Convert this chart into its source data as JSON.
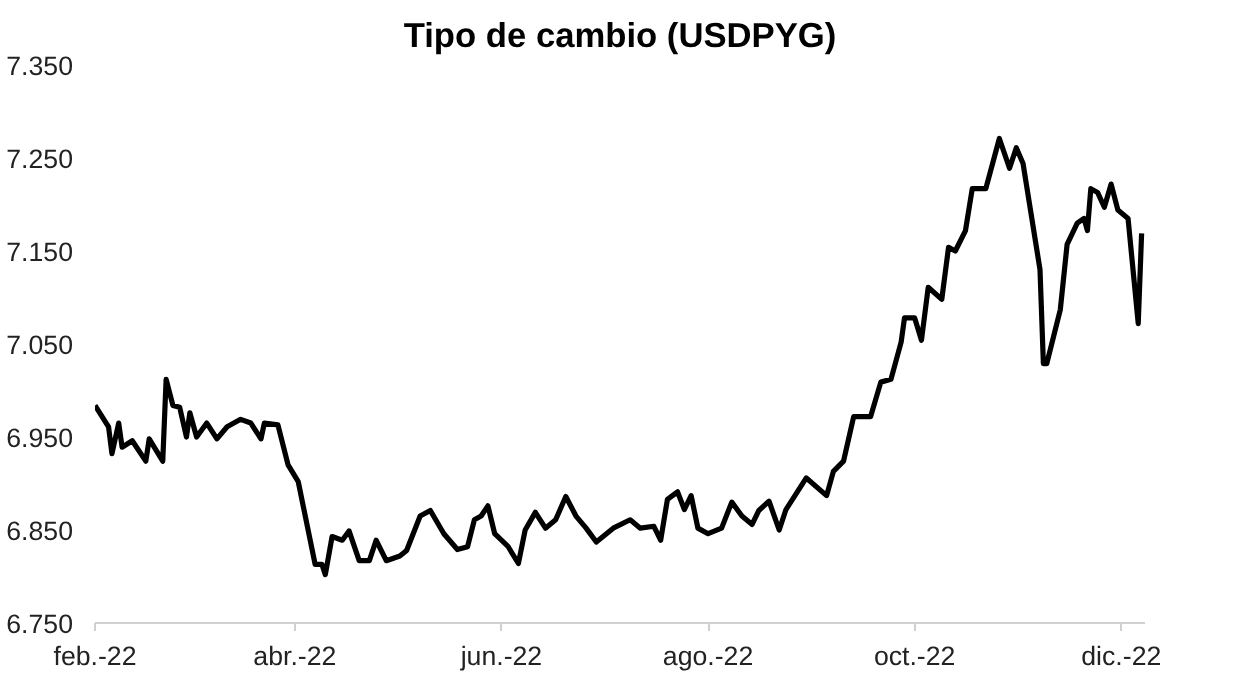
{
  "chart_data": {
    "type": "line",
    "title": "Tipo de cambio (USDPYG)",
    "x": [
      "2022-02-01",
      "2022-02-05",
      "2022-02-06",
      "2022-02-08",
      "2022-02-09",
      "2022-02-12",
      "2022-02-16",
      "2022-02-17",
      "2022-02-21",
      "2022-02-22",
      "2022-02-24",
      "2022-02-26",
      "2022-02-28",
      "2022-03-01",
      "2022-03-03",
      "2022-03-06",
      "2022-03-09",
      "2022-03-12",
      "2022-03-16",
      "2022-03-19",
      "2022-03-22",
      "2022-03-23",
      "2022-03-27",
      "2022-03-30",
      "2022-04-02",
      "2022-04-07",
      "2022-04-09",
      "2022-04-10",
      "2022-04-12",
      "2022-04-15",
      "2022-04-17",
      "2022-04-20",
      "2022-04-23",
      "2022-04-25",
      "2022-04-28",
      "2022-05-02",
      "2022-05-04",
      "2022-05-08",
      "2022-05-11",
      "2022-05-15",
      "2022-05-19",
      "2022-05-22",
      "2022-05-24",
      "2022-05-26",
      "2022-05-28",
      "2022-05-30",
      "2022-06-03",
      "2022-06-06",
      "2022-06-08",
      "2022-06-11",
      "2022-06-14",
      "2022-06-17",
      "2022-06-20",
      "2022-06-23",
      "2022-06-26",
      "2022-06-29",
      "2022-07-04",
      "2022-07-09",
      "2022-07-12",
      "2022-07-16",
      "2022-07-18",
      "2022-07-20",
      "2022-07-23",
      "2022-07-25",
      "2022-07-27",
      "2022-07-29",
      "2022-08-01",
      "2022-08-05",
      "2022-08-08",
      "2022-08-11",
      "2022-08-14",
      "2022-08-16",
      "2022-08-19",
      "2022-08-22",
      "2022-08-24",
      "2022-08-30",
      "2022-09-05",
      "2022-09-07",
      "2022-09-10",
      "2022-09-13",
      "2022-09-18",
      "2022-09-21",
      "2022-09-24",
      "2022-09-27",
      "2022-09-28",
      "2022-10-01",
      "2022-10-03",
      "2022-10-05",
      "2022-10-09",
      "2022-10-11",
      "2022-10-13",
      "2022-10-16",
      "2022-10-18",
      "2022-10-22",
      "2022-10-26",
      "2022-10-29",
      "2022-10-31",
      "2022-11-02",
      "2022-11-07",
      "2022-11-08",
      "2022-11-09",
      "2022-11-13",
      "2022-11-15",
      "2022-11-18",
      "2022-11-20",
      "2022-11-21",
      "2022-11-22",
      "2022-11-24",
      "2022-11-26",
      "2022-11-28",
      "2022-11-30",
      "2022-12-03",
      "2022-12-06",
      "2022-12-07"
    ],
    "series": [
      {
        "color": "#000000",
        "values": [
          6.984,
          6.961,
          6.932,
          6.965,
          6.939,
          6.946,
          6.924,
          6.948,
          6.924,
          7.012,
          6.984,
          6.982,
          6.95,
          6.976,
          6.95,
          6.965,
          6.948,
          6.961,
          6.969,
          6.965,
          6.948,
          6.965,
          6.963,
          6.92,
          6.902,
          6.813,
          6.813,
          6.802,
          6.843,
          6.839,
          6.849,
          6.817,
          6.817,
          6.839,
          6.817,
          6.822,
          6.828,
          6.865,
          6.871,
          6.846,
          6.829,
          6.832,
          6.861,
          6.865,
          6.876,
          6.846,
          6.832,
          6.814,
          6.85,
          6.869,
          6.852,
          6.861,
          6.886,
          6.865,
          6.852,
          6.837,
          6.852,
          6.861,
          6.852,
          6.854,
          6.839,
          6.883,
          6.891,
          6.872,
          6.887,
          6.852,
          6.846,
          6.852,
          6.88,
          6.865,
          6.856,
          6.871,
          6.881,
          6.85,
          6.872,
          6.906,
          6.887,
          6.913,
          6.924,
          6.972,
          6.972,
          7.009,
          7.012,
          7.052,
          7.078,
          7.078,
          7.054,
          7.111,
          7.098,
          7.154,
          7.15,
          7.172,
          7.217,
          7.217,
          7.271,
          7.239,
          7.261,
          7.244,
          7.13,
          7.029,
          7.029,
          7.087,
          7.157,
          7.18,
          7.185,
          7.172,
          7.217,
          7.213,
          7.197,
          7.222,
          7.194,
          7.185,
          7.072,
          7.169
        ]
      }
    ],
    "xlim": [
      "2022-02-01",
      "2022-12-08"
    ],
    "xticks": [
      {
        "value": "2022-02-01",
        "label": "feb.-22"
      },
      {
        "value": "2022-04-01",
        "label": "abr.-22"
      },
      {
        "value": "2022-06-01",
        "label": "jun.-22"
      },
      {
        "value": "2022-08-01",
        "label": "ago.-22"
      },
      {
        "value": "2022-10-01",
        "label": "oct.-22"
      },
      {
        "value": "2022-12-01",
        "label": "dic.-22"
      }
    ],
    "ylim": [
      6.75,
      7.35
    ],
    "yticks": [
      {
        "value": 6.75,
        "label": "6.750"
      },
      {
        "value": 6.85,
        "label": "6.850"
      },
      {
        "value": 6.95,
        "label": "6.950"
      },
      {
        "value": 7.05,
        "label": "7.050"
      },
      {
        "value": 7.15,
        "label": "7.150"
      },
      {
        "value": 7.25,
        "label": "7.250"
      },
      {
        "value": 7.35,
        "label": "7.350"
      }
    ],
    "grid": false,
    "line_style": "solid"
  }
}
